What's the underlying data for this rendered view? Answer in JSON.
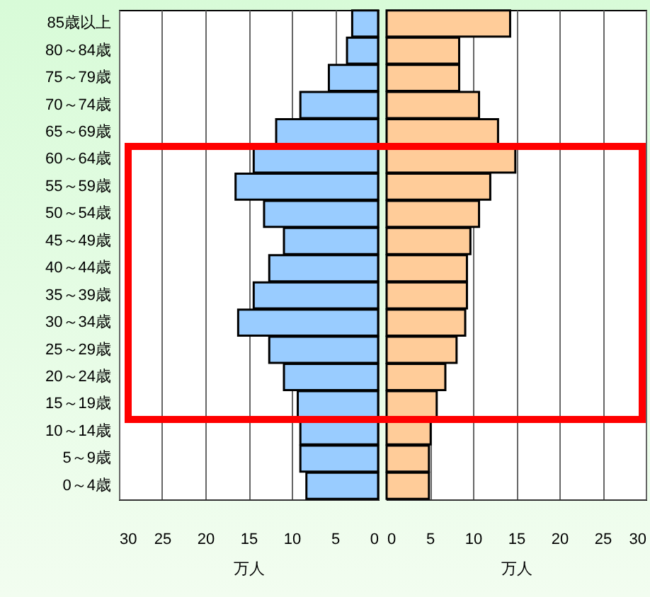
{
  "chart_data": [
    {
      "type": "bar",
      "orientation": "horizontal",
      "categories": [
        "85歳以上",
        "80～84歳",
        "75～79歳",
        "70～74歳",
        "65～69歳",
        "60～64歳",
        "55～59歳",
        "50～54歳",
        "45～49歳",
        "40～44歳",
        "35～39歳",
        "30～34歳",
        "25～29歳",
        "20～24歳",
        "15～19歳",
        "10～14歳",
        "5～9歳",
        "0～4歳"
      ],
      "values": [
        3.0,
        3.6,
        5.7,
        9.0,
        11.8,
        14.4,
        16.5,
        13.2,
        10.9,
        12.6,
        14.4,
        16.2,
        12.6,
        10.9,
        9.3,
        9.0,
        9.0,
        8.3
      ],
      "color": "#99ccff",
      "xlim": [
        30,
        0
      ],
      "xticks": [
        30,
        25,
        20,
        15,
        10,
        5,
        0
      ],
      "xlabel": "万人",
      "grid": "x"
    },
    {
      "type": "bar",
      "orientation": "horizontal",
      "categories": [
        "85歳以上",
        "80～84歳",
        "75～79歳",
        "70～74歳",
        "65～69歳",
        "60～64歳",
        "55～59歳",
        "50～54歳",
        "45～49歳",
        "40～44歳",
        "35～39歳",
        "30～34歳",
        "25～29歳",
        "20～24歳",
        "15～19歳",
        "10～14歳",
        "5～9歳",
        "0～4歳"
      ],
      "values": [
        14.3,
        8.4,
        8.4,
        10.7,
        12.9,
        14.9,
        12.0,
        10.7,
        9.7,
        9.3,
        9.3,
        9.1,
        8.1,
        6.8,
        5.8,
        5.1,
        4.9,
        4.9
      ],
      "color": "#ffcc99",
      "xlim": [
        0,
        30
      ],
      "xticks": [
        0,
        5,
        10,
        15,
        20,
        25,
        30
      ],
      "xlabel": "万人",
      "grid": "x",
      "tick_labels": "x"
    }
  ]
}
